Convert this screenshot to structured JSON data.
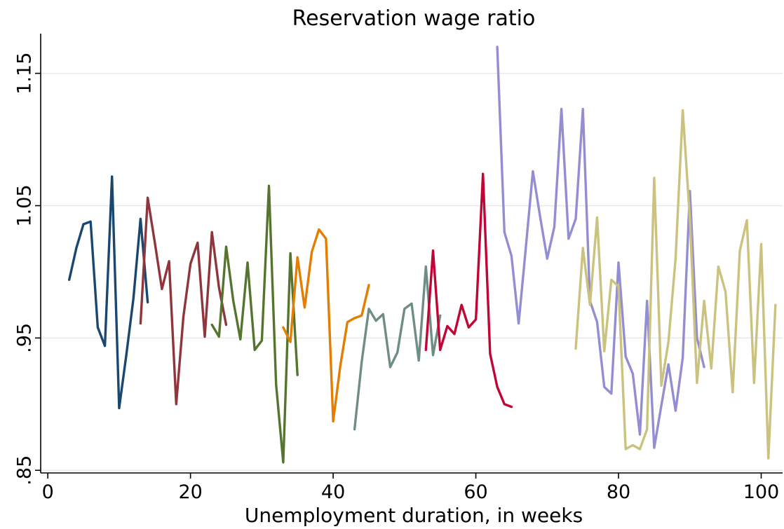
{
  "chart_data": {
    "type": "line",
    "title": "Reservation wage ratio",
    "xlabel": "Unemployment duration, in weeks",
    "ylabel": "",
    "xlim": [
      -1,
      103
    ],
    "ylim": [
      0.848,
      1.18
    ],
    "xticks": [
      0,
      20,
      40,
      60,
      80,
      100
    ],
    "xtick_labels": [
      "0",
      "20",
      "40",
      "60",
      "80",
      "100"
    ],
    "yticks": [
      0.85,
      0.95,
      1.05,
      1.15
    ],
    "ytick_labels": [
      ".85",
      ".95",
      "1.05",
      "1.15"
    ],
    "grid": "horizontal",
    "legend": "none",
    "series": [
      {
        "color": "#1a476f",
        "x": [
          3,
          4,
          5,
          6,
          7,
          8,
          9,
          10,
          11,
          12,
          13,
          14
        ],
        "y": [
          0.994,
          1.018,
          1.036,
          1.038,
          0.958,
          0.944,
          1.072,
          0.897,
          0.937,
          0.98,
          1.04,
          0.977
        ]
      },
      {
        "color": "#90353b",
        "x": [
          13,
          14,
          15,
          16,
          17,
          18,
          19,
          20,
          21,
          22,
          23,
          24,
          25
        ],
        "y": [
          0.961,
          1.056,
          1.022,
          0.987,
          1.008,
          0.9,
          0.966,
          1.006,
          1.022,
          0.951,
          1.03,
          0.988,
          0.96
        ]
      },
      {
        "color": "#55752f",
        "x": [
          23,
          24,
          25,
          26,
          27,
          28,
          29,
          30,
          31,
          32,
          33,
          34,
          35
        ],
        "y": [
          0.96,
          0.951,
          1.019,
          0.978,
          0.949,
          1.007,
          0.941,
          0.948,
          1.065,
          0.915,
          0.856,
          1.014,
          0.922
        ]
      },
      {
        "color": "#e37e00",
        "x": [
          33,
          34,
          35,
          36,
          37,
          38,
          39,
          40,
          41,
          42,
          43,
          44,
          45
        ],
        "y": [
          0.958,
          0.947,
          1.011,
          0.973,
          1.015,
          1.032,
          1.025,
          0.887,
          0.929,
          0.962,
          0.965,
          0.967,
          0.99
        ]
      },
      {
        "color": "#6e8e84",
        "x": [
          43,
          44,
          45,
          46,
          47,
          48,
          49,
          50,
          51,
          52,
          53,
          54,
          55
        ],
        "y": [
          0.881,
          0.932,
          0.972,
          0.963,
          0.968,
          0.928,
          0.939,
          0.972,
          0.976,
          0.933,
          1.004,
          0.937,
          0.967
        ]
      },
      {
        "color": "#c10534",
        "x": [
          53,
          54,
          55,
          56,
          57,
          58,
          59,
          60,
          61,
          62,
          63,
          64,
          65
        ],
        "y": [
          0.941,
          1.016,
          0.941,
          0.959,
          0.953,
          0.975,
          0.958,
          0.964,
          1.074,
          0.938,
          0.913,
          0.9,
          0.898
        ]
      },
      {
        "color": "#938dd2",
        "x": [
          63,
          64,
          65,
          66,
          67,
          68,
          69,
          70,
          71,
          72,
          73,
          74,
          75,
          76,
          77,
          78,
          79,
          80,
          81,
          82,
          83,
          84,
          85,
          86,
          87,
          88,
          89,
          90,
          91,
          92
        ],
        "y": [
          1.17,
          1.03,
          1.012,
          0.961,
          1.018,
          1.076,
          1.042,
          1.01,
          1.034,
          1.123,
          1.025,
          1.04,
          1.123,
          0.978,
          0.962,
          0.913,
          0.908,
          1.007,
          0.936,
          0.923,
          0.877,
          0.978,
          0.867,
          0.899,
          0.93,
          0.895,
          0.935,
          1.061,
          0.95,
          0.928
        ]
      },
      {
        "color": "#cac27e",
        "x": [
          74,
          75,
          76,
          77,
          78,
          79,
          80,
          81,
          82,
          83,
          84,
          85,
          86,
          87,
          88,
          89,
          90,
          91,
          92,
          93,
          94,
          95,
          96,
          97,
          98,
          99,
          100,
          101,
          102
        ],
        "y": [
          0.942,
          1.018,
          0.975,
          1.041,
          0.94,
          0.994,
          0.989,
          0.866,
          0.869,
          0.866,
          0.881,
          1.071,
          0.914,
          0.947,
          1.01,
          1.122,
          1.04,
          0.916,
          0.978,
          0.927,
          1.004,
          0.985,
          0.909,
          1.016,
          1.039,
          0.916,
          1.021,
          0.859,
          0.975
        ]
      }
    ]
  }
}
